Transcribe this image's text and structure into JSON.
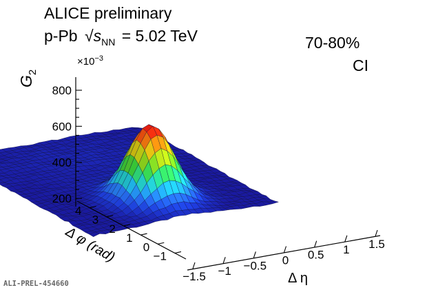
{
  "header": {
    "experiment": "ALICE preliminary",
    "system": "p-Pb",
    "sqrt_symbol": "√",
    "s": "s",
    "nn": "NN",
    "energy": "= 5.02 TeV",
    "centrality": "70-80%",
    "charge_label": "CI"
  },
  "footer": {
    "figure_id": "ALI-PREL-454660"
  },
  "chart_data": {
    "type": "surface3d",
    "zlabel_main": "G",
    "zlabel_sub": "2",
    "z_multiplier": "×10",
    "z_multiplier_exp": "−3",
    "xlabel": "Δ η",
    "ylabel": "Δ φ (rad)",
    "z_ticks": [
      {
        "value": 200,
        "label": "200"
      },
      {
        "value": 400,
        "label": "400"
      },
      {
        "value": 600,
        "label": "600"
      },
      {
        "value": 800,
        "label": "800"
      }
    ],
    "x_ticks": [
      {
        "value": -1.5,
        "label": "−1.5"
      },
      {
        "value": -1.0,
        "label": "−1"
      },
      {
        "value": -0.5,
        "label": "−0.5"
      },
      {
        "value": 0.0,
        "label": "0"
      },
      {
        "value": 0.5,
        "label": "0.5"
      },
      {
        "value": 1.0,
        "label": "1"
      },
      {
        "value": 1.5,
        "label": "1.5"
      }
    ],
    "y_ticks": [
      {
        "value": -1,
        "label": "−1"
      },
      {
        "value": 0,
        "label": "0"
      },
      {
        "value": 1,
        "label": "1"
      },
      {
        "value": 2,
        "label": "2"
      },
      {
        "value": 3,
        "label": "3"
      },
      {
        "value": 4,
        "label": "4"
      }
    ],
    "x_range": [
      -1.6,
      1.6
    ],
    "y_range": [
      -1.57,
      4.71
    ],
    "z_range": [
      200,
      800
    ],
    "model": {
      "baseline": 262,
      "peak_height": 411,
      "peak_sigma_eta": 0.33,
      "peak_sigma_phi": 0.6,
      "peak_center": [
        0.0,
        0.0
      ],
      "eta_falloff": 0.04,
      "away_side_amplitude": 8,
      "noise_amplitude": 5
    },
    "colorscale": [
      "#1a1aa0",
      "#1f3fe0",
      "#2a7cff",
      "#22c8ff",
      "#28e6b0",
      "#3fe33f",
      "#9be01c",
      "#e8e014",
      "#ff9a10",
      "#ff3a10",
      "#e01212"
    ]
  }
}
